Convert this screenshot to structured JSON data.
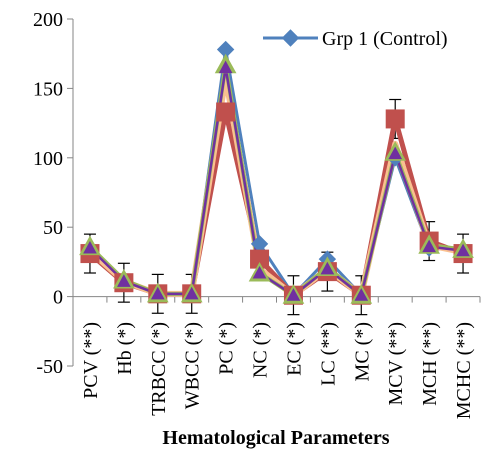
{
  "chart_data": {
    "type": "line",
    "xlabel": "Hematological Parameters",
    "ylabel": "",
    "ylim": [
      -50,
      200
    ],
    "yticks": [
      -50,
      0,
      50,
      100,
      150,
      200
    ],
    "categories": [
      "PCV (**)",
      "Hb (*)",
      "TRBCC (*)",
      "WBCC (*)",
      "PC (*)",
      "NC (*)",
      "EC (*)",
      "LC (**)",
      "MC (*)",
      "MCV (**)",
      "MCH (**)",
      "MCHC (**)"
    ],
    "legend_position": "top-right",
    "series": [
      {
        "name": "Grp 1 (Control)",
        "color": "#4f81bd",
        "marker": "diamond",
        "values": [
          35,
          12,
          2,
          2,
          178,
          38,
          1,
          27,
          1,
          100,
          35,
          33
        ],
        "in_legend": true
      },
      {
        "color": "#c0504d",
        "marker": "square",
        "values": [
          31,
          10,
          2,
          2,
          133,
          27,
          1,
          18,
          1,
          128,
          40,
          31
        ],
        "in_legend": false
      },
      {
        "color": "#fac090",
        "marker": "none",
        "values": [
          33,
          11,
          2,
          2,
          158,
          20,
          1,
          20,
          1,
          110,
          37,
          32
        ],
        "in_legend": false
      },
      {
        "color": "#9bbb59",
        "marker": "triangle",
        "values": [
          36,
          12,
          2,
          2,
          167,
          17,
          1,
          21,
          1,
          104,
          37,
          34
        ],
        "in_legend": false
      },
      {
        "color": "#7030a0",
        "marker": "triangle-small",
        "values": [
          35,
          11,
          2,
          2,
          165,
          17,
          1,
          20,
          1,
          103,
          36,
          33
        ],
        "in_legend": false
      }
    ],
    "error_bars": [
      14,
      14,
      14,
      14,
      0,
      0,
      14,
      14,
      14,
      14,
      14,
      14
    ]
  }
}
